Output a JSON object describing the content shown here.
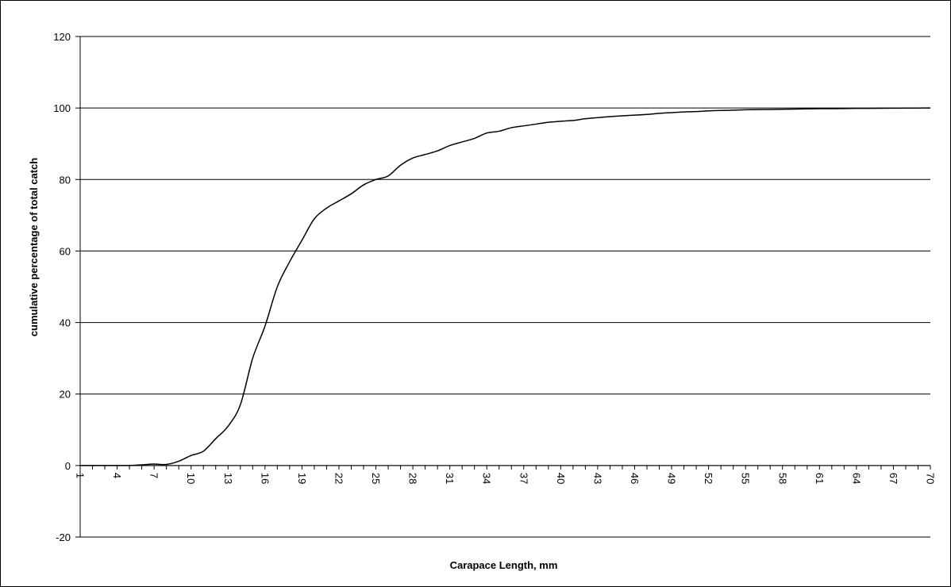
{
  "chart_data": {
    "type": "line",
    "title": "",
    "xlabel": "Carapace Length, mm",
    "ylabel": "cumulative percentage of total catch",
    "ylim": [
      -20,
      120
    ],
    "yticks": [
      -20,
      0,
      20,
      40,
      60,
      80,
      100,
      120
    ],
    "xlim": [
      1,
      70
    ],
    "xtick_labels": [
      "1",
      "4",
      "7",
      "10",
      "13",
      "16",
      "19",
      "22",
      "25",
      "28",
      "31",
      "34",
      "37",
      "40",
      "43",
      "46",
      "49",
      "52",
      "55",
      "58",
      "61",
      "64",
      "67",
      "70"
    ],
    "grid": "horizontal",
    "legend": "none",
    "line_color": "#000000",
    "x": [
      1,
      2,
      3,
      4,
      5,
      6,
      7,
      8,
      9,
      10,
      11,
      12,
      13,
      14,
      15,
      16,
      17,
      18,
      19,
      20,
      21,
      22,
      23,
      24,
      25,
      26,
      27,
      28,
      29,
      30,
      31,
      32,
      33,
      34,
      35,
      36,
      37,
      38,
      39,
      40,
      41,
      42,
      43,
      44,
      45,
      46,
      47,
      48,
      49,
      50,
      51,
      52,
      53,
      54,
      55,
      56,
      57,
      58,
      59,
      60,
      61,
      62,
      63,
      64,
      65,
      66,
      67,
      68,
      69,
      70
    ],
    "y": [
      0,
      0,
      0,
      0,
      0,
      0.2,
      0.4,
      0.3,
      1.2,
      2.8,
      4,
      7.5,
      11,
      17,
      30,
      39,
      50,
      57,
      63,
      69,
      72,
      74,
      76,
      78.5,
      80,
      81,
      84,
      86,
      87,
      88,
      89.5,
      90.5,
      91.5,
      93,
      93.5,
      94.5,
      95,
      95.5,
      96,
      96.3,
      96.5,
      97,
      97.3,
      97.6,
      97.8,
      98,
      98.2,
      98.5,
      98.7,
      98.9,
      99,
      99.2,
      99.3,
      99.4,
      99.5,
      99.55,
      99.6,
      99.65,
      99.7,
      99.75,
      99.8,
      99.82,
      99.85,
      99.88,
      99.9,
      99.92,
      99.95,
      99.97,
      99.99,
      100
    ]
  }
}
